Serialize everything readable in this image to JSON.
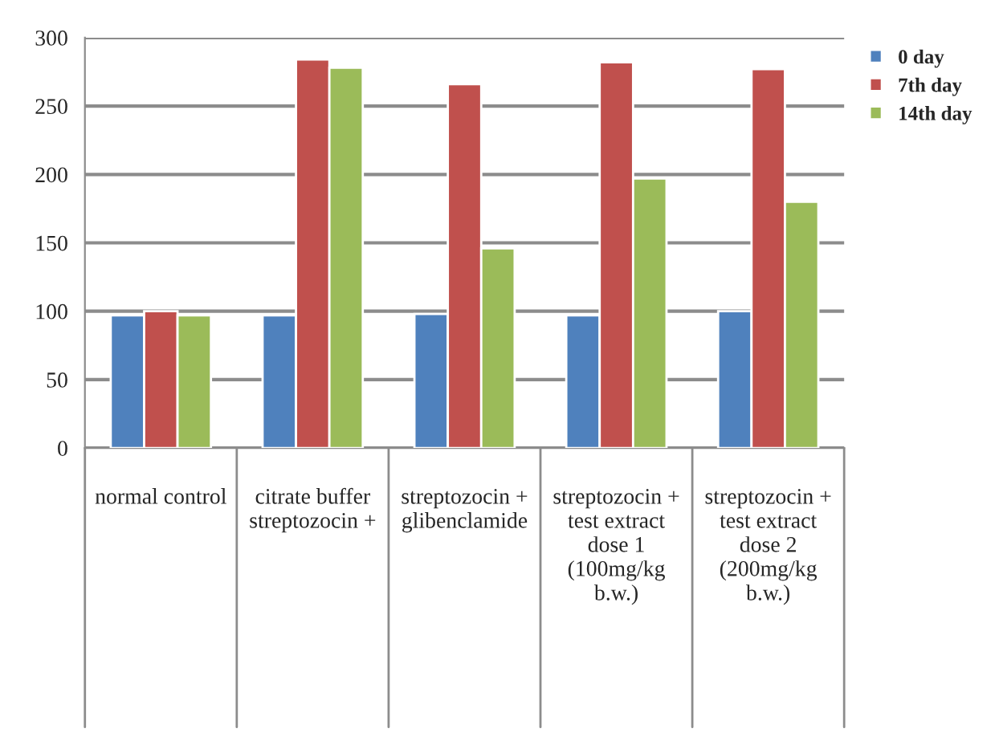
{
  "chart_data": {
    "type": "bar",
    "categories": [
      "normal control",
      "citrate buffer\nstreptozocin +",
      "streptozocin +\nglibenclamide",
      "streptozocin +\ntest extract\ndose 1\n(100mg/kg\nb.w.)",
      "streptozocin +\ntest extract\ndose 2\n(200mg/kg\nb.w.)"
    ],
    "series": [
      {
        "name": "0 day",
        "color": "#4f81bd",
        "values": [
          97,
          97,
          98,
          97,
          100
        ]
      },
      {
        "name": "7th day",
        "color": "#c0504d",
        "values": [
          100,
          284,
          266,
          282,
          277
        ]
      },
      {
        "name": "14th day",
        "color": "#9bbb59",
        "values": [
          97,
          278,
          146,
          197,
          180
        ]
      }
    ],
    "ylim": [
      0,
      300
    ],
    "yticks": [
      0,
      50,
      100,
      150,
      200,
      250,
      300
    ],
    "grid": "y",
    "legend": "right"
  }
}
